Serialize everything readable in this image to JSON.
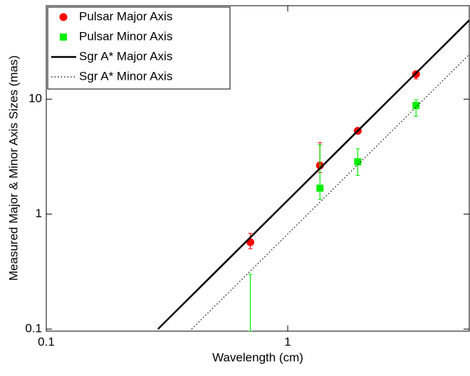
{
  "chart_data": {
    "type": "line",
    "xlabel": "Wavelength (cm)",
    "ylabel": "Measured Major & Minor Axis Sizes (mas)",
    "xscale": "log",
    "yscale": "log",
    "xlim": [
      0.1,
      5.65
    ],
    "ylim": [
      0.096,
      65
    ],
    "xticks": [
      0.1,
      1
    ],
    "yticks": [
      0.1,
      1,
      10
    ],
    "legend": "upper left",
    "series": [
      {
        "name": "Pulsar Major Axis",
        "color": "#ff0000",
        "marker": "circle",
        "x": [
          0.7,
          1.36,
          1.95,
          3.4
        ],
        "values": [
          0.57,
          2.65,
          5.3,
          16.5
        ],
        "err_low": [
          0.5,
          2.3,
          5.0,
          15.0
        ],
        "err_high": [
          0.68,
          4.2,
          5.6,
          17.5
        ]
      },
      {
        "name": "Pulsar Minor Axis",
        "color": "#00ee00",
        "marker": "square",
        "x": [
          0.7,
          1.36,
          1.95,
          3.4
        ],
        "values": [
          null,
          1.68,
          2.85,
          8.8
        ],
        "err_low": [
          0.096,
          1.34,
          2.17,
          7.1
        ],
        "err_high": [
          0.3,
          4.0,
          3.7,
          9.9
        ]
      },
      {
        "name": "Sgr A* Major Axis",
        "color": "#000000",
        "linestyle": "solid",
        "x": [
          0.29,
          5.65
        ],
        "values": [
          0.1,
          48.6
        ]
      },
      {
        "name": "Sgr A* Minor Axis",
        "color": "#000000",
        "linestyle": "dotted",
        "x": [
          0.4,
          5.65
        ],
        "values": [
          0.1,
          24.5
        ]
      }
    ]
  }
}
